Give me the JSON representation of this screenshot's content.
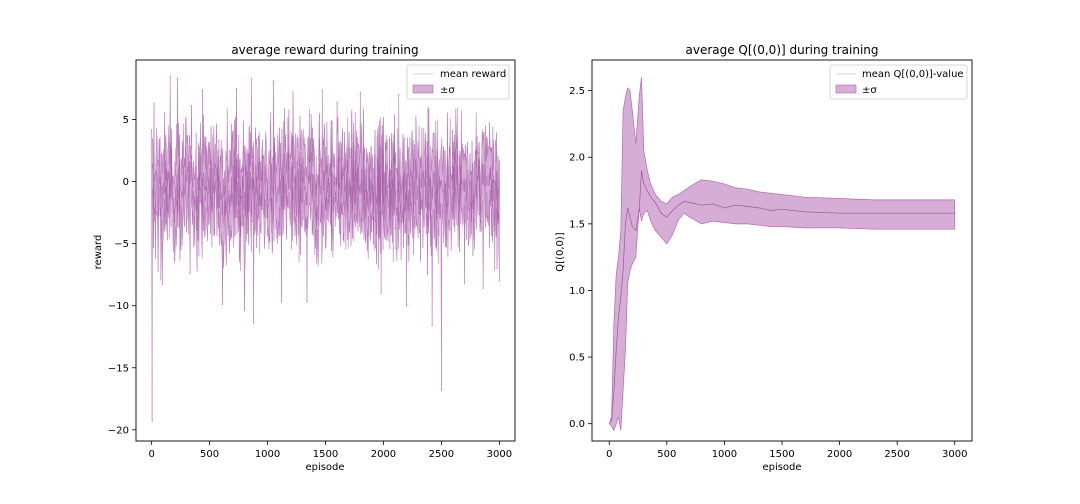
{
  "chart_data": [
    {
      "type": "line",
      "title": "average reward during training",
      "xlabel": "episode",
      "ylabel": "reward",
      "xlim": [
        -135,
        3135
      ],
      "ylim": [
        -20.9,
        9.8
      ],
      "xticks": [
        0,
        500,
        1000,
        1500,
        2000,
        2500,
        3000
      ],
      "yticks": [
        -20,
        -15,
        -10,
        -5,
        0,
        5
      ],
      "xtick_labels": [
        "0",
        "500",
        "1000",
        "1500",
        "2000",
        "2500",
        "3000"
      ],
      "ytick_labels": [
        "−20",
        "−15",
        "−10",
        "−5",
        "0",
        "5"
      ],
      "legend": {
        "placement": "top-right",
        "entries": [
          "mean reward",
          "±σ"
        ]
      },
      "series_style": {
        "line": "#dddddd",
        "fill": "#b36ab3",
        "fill_opacity": 0.55
      },
      "episodes": 3000,
      "band_center_approx": -0.5,
      "band_halfwidth_approx": 2.5,
      "min_value": -19.3,
      "max_value": 8.5,
      "spikes": [
        {
          "x": 5,
          "y": -19.3
        },
        {
          "x": 20,
          "y": 6.3
        },
        {
          "x": 90,
          "y": -8.3
        },
        {
          "x": 160,
          "y": 8.5
        },
        {
          "x": 225,
          "y": 8.3
        },
        {
          "x": 330,
          "y": -7.4
        },
        {
          "x": 440,
          "y": 7.4
        },
        {
          "x": 610,
          "y": -9.9
        },
        {
          "x": 730,
          "y": 7.5
        },
        {
          "x": 800,
          "y": -10.4
        },
        {
          "x": 860,
          "y": 8.3
        },
        {
          "x": 880,
          "y": -11.4
        },
        {
          "x": 1050,
          "y": 8.1
        },
        {
          "x": 1120,
          "y": -9.7
        },
        {
          "x": 1340,
          "y": -9.7
        },
        {
          "x": 1470,
          "y": 7.4
        },
        {
          "x": 1600,
          "y": 6.4
        },
        {
          "x": 1800,
          "y": 7.2
        },
        {
          "x": 1980,
          "y": -9.0
        },
        {
          "x": 2130,
          "y": 7.0
        },
        {
          "x": 2200,
          "y": -10.0
        },
        {
          "x": 2390,
          "y": 5.8
        },
        {
          "x": 2420,
          "y": -11.6
        },
        {
          "x": 2500,
          "y": -16.8
        },
        {
          "x": 2700,
          "y": -8.2
        },
        {
          "x": 2860,
          "y": -8.6
        },
        {
          "x": 2930,
          "y": 2.4
        },
        {
          "x": 3000,
          "y": -8.0
        }
      ]
    },
    {
      "type": "area",
      "title": "average Q[(0,0)] during training",
      "xlabel": "episode",
      "ylabel": "Q[(0,0)]",
      "xlim": [
        -150,
        3150
      ],
      "ylim": [
        -0.13,
        2.73
      ],
      "xticks": [
        0,
        500,
        1000,
        1500,
        2000,
        2500,
        3000
      ],
      "yticks": [
        0.0,
        0.5,
        1.0,
        1.5,
        2.0,
        2.5
      ],
      "xtick_labels": [
        "0",
        "500",
        "1000",
        "1500",
        "2000",
        "2500",
        "3000"
      ],
      "ytick_labels": [
        "0.0",
        "0.5",
        "1.0",
        "1.5",
        "2.0",
        "2.5"
      ],
      "legend": {
        "placement": "top-right",
        "entries": [
          "mean Q[(0,0)]-value",
          "±σ"
        ]
      },
      "series_style": {
        "line": "#dddddd",
        "fill": "#b36ab3",
        "fill_opacity": 0.55
      },
      "x": [
        0,
        20,
        40,
        60,
        80,
        100,
        120,
        140,
        160,
        180,
        200,
        230,
        260,
        280,
        300,
        330,
        360,
        400,
        450,
        500,
        550,
        600,
        650,
        700,
        800,
        900,
        1000,
        1100,
        1200,
        1300,
        1400,
        1500,
        1700,
        2000,
        2300,
        2600,
        3000
      ],
      "mean": [
        0.0,
        0.02,
        0.25,
        0.55,
        0.8,
        0.95,
        1.15,
        1.5,
        1.62,
        1.55,
        1.48,
        1.45,
        1.6,
        1.9,
        1.8,
        1.75,
        1.7,
        1.66,
        1.58,
        1.55,
        1.6,
        1.64,
        1.67,
        1.66,
        1.64,
        1.65,
        1.62,
        1.64,
        1.63,
        1.62,
        1.6,
        1.61,
        1.59,
        1.58,
        1.58,
        1.58,
        1.58
      ],
      "upper": [
        0.0,
        0.05,
        0.75,
        1.12,
        1.25,
        1.45,
        2.35,
        2.45,
        2.52,
        2.5,
        2.35,
        2.1,
        2.45,
        2.6,
        2.05,
        1.9,
        1.8,
        1.72,
        1.67,
        1.65,
        1.7,
        1.72,
        1.75,
        1.78,
        1.83,
        1.82,
        1.8,
        1.77,
        1.76,
        1.74,
        1.73,
        1.72,
        1.7,
        1.69,
        1.68,
        1.68,
        1.68
      ],
      "lower": [
        0.0,
        -0.02,
        -0.05,
        0.0,
        0.05,
        -0.05,
        0.25,
        0.55,
        1.05,
        1.15,
        1.2,
        1.25,
        1.62,
        1.52,
        1.58,
        1.6,
        1.52,
        1.45,
        1.4,
        1.35,
        1.42,
        1.53,
        1.58,
        1.55,
        1.5,
        1.52,
        1.51,
        1.5,
        1.5,
        1.49,
        1.48,
        1.48,
        1.47,
        1.47,
        1.46,
        1.46,
        1.46
      ]
    }
  ]
}
